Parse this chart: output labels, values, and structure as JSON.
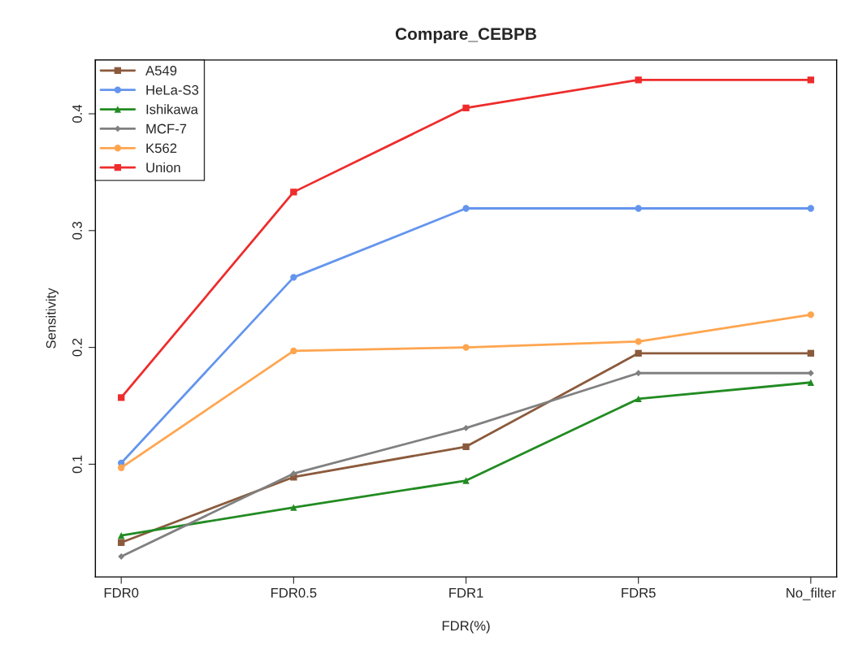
{
  "chart_data": {
    "type": "line",
    "title": "Compare_CEBPB",
    "xlabel": "FDR(%)",
    "ylabel": "Sensitivity",
    "categories": [
      "FDR0",
      "FDR0.5",
      "FDR1",
      "FDR5",
      "No_filter"
    ],
    "series": [
      {
        "name": "A549",
        "color": "#8b5a3c",
        "marker": "square",
        "values": [
          0.033,
          0.089,
          0.115,
          0.195,
          0.195
        ]
      },
      {
        "name": "HeLa-S3",
        "color": "#6495ed",
        "marker": "circle",
        "values": [
          0.101,
          0.26,
          0.319,
          0.319,
          0.319
        ]
      },
      {
        "name": "Ishikawa",
        "color": "#228b22",
        "marker": "triangle",
        "values": [
          0.039,
          0.063,
          0.086,
          0.156,
          0.17
        ]
      },
      {
        "name": "MCF-7",
        "color": "#808080",
        "marker": "diamond",
        "values": [
          0.021,
          0.092,
          0.131,
          0.178,
          0.178
        ]
      },
      {
        "name": "K562",
        "color": "#ffa54f",
        "marker": "circle",
        "values": [
          0.097,
          0.197,
          0.2,
          0.205,
          0.228
        ]
      },
      {
        "name": "Union",
        "color": "#ee2c2c",
        "marker": "square",
        "values": [
          0.157,
          0.333,
          0.405,
          0.429,
          0.429
        ]
      }
    ],
    "ylim": [
      0.0035,
      0.446
    ],
    "yticks": [
      0.1,
      0.2,
      0.3,
      0.4
    ],
    "grid": false,
    "legend": "top left",
    "line_style": "solid"
  }
}
